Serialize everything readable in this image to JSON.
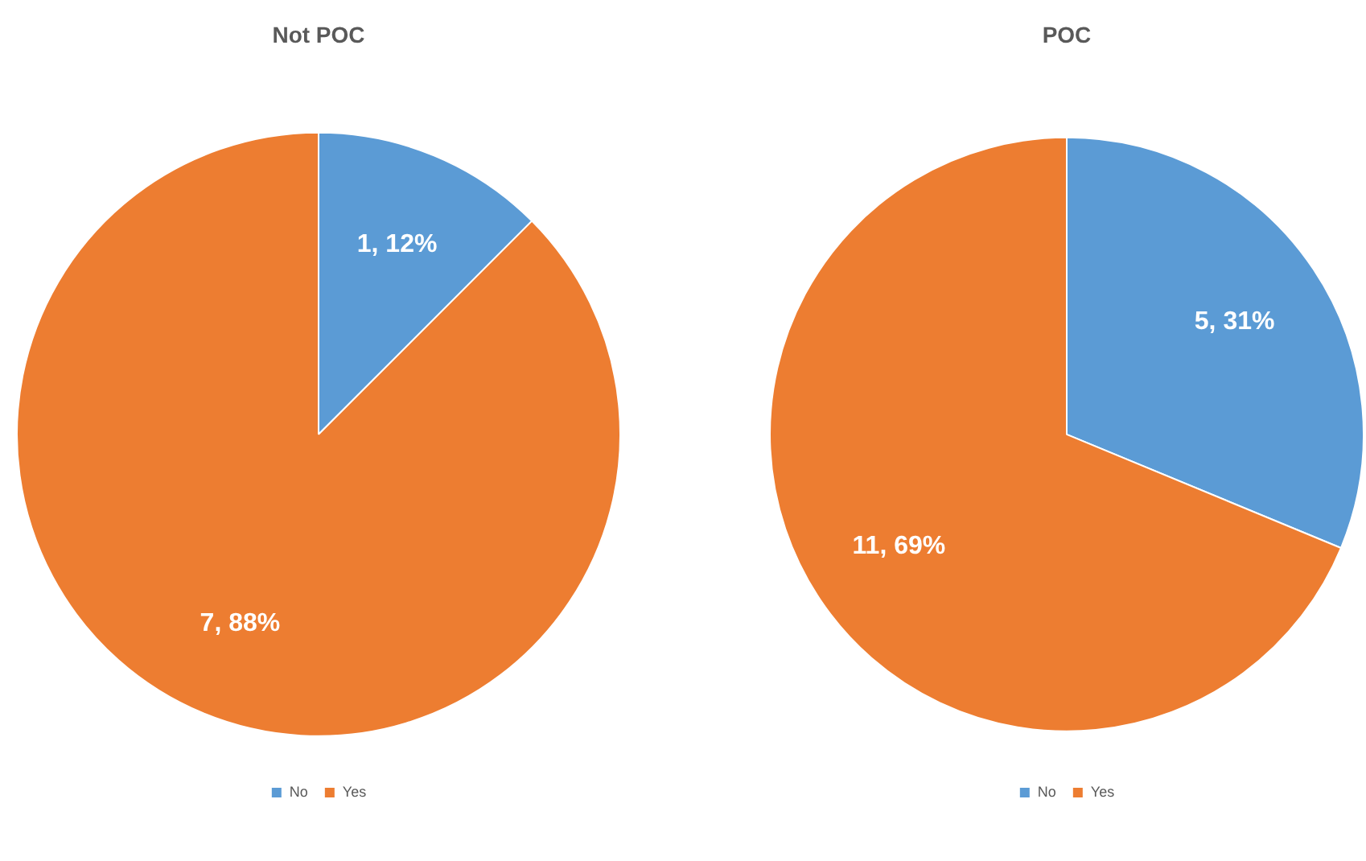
{
  "chart_data": [
    {
      "type": "pie",
      "title": "Not POC",
      "categories": [
        "No",
        "Yes"
      ],
      "values": [
        1,
        7
      ],
      "colors": [
        "#5b9bd5",
        "#ed7d31"
      ],
      "value_labels": [
        "1, 12%",
        "7, 88%"
      ],
      "legend": "bottom"
    },
    {
      "type": "pie",
      "title": "POC",
      "categories": [
        "No",
        "Yes"
      ],
      "values": [
        5,
        11
      ],
      "colors": [
        "#5b9bd5",
        "#ed7d31"
      ],
      "value_labels": [
        "5, 31%",
        "11, 69%"
      ],
      "legend": "bottom"
    }
  ]
}
